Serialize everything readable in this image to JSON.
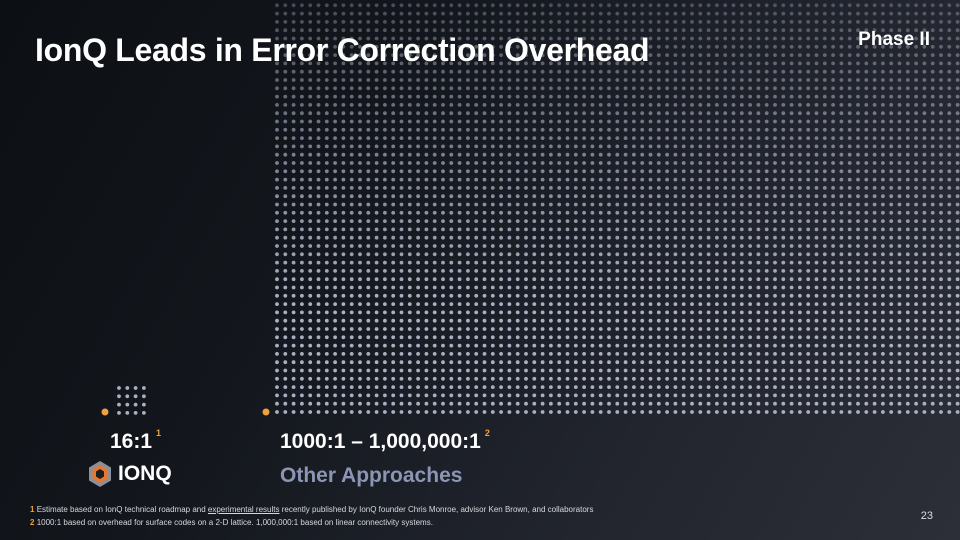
{
  "title": "IonQ Leads in Error Correction Overhead",
  "phase": "Phase II",
  "ionq": {
    "ratio": "16:1",
    "footnote_ref": "1",
    "logo_text": "IONQ"
  },
  "other": {
    "ratio": "1000:1 – 1,000,000:1",
    "footnote_ref": "2",
    "label": "Other Approaches"
  },
  "footnotes": [
    {
      "num": "1",
      "pre": "Estimate based on IonQ technical roadmap and ",
      "link": "experimental results",
      "post": " recently published by IonQ founder Chris Monroe, advisor Ken Brown, and collaborators"
    },
    {
      "num": "2",
      "text": "1000:1 based on overhead for surface codes on a 2-D lattice. 1,000,000:1 based on linear connectivity systems."
    }
  ],
  "page_number": "23",
  "colors": {
    "accent": "#f0a03c",
    "dot": "#a9b0c4",
    "secondary_text": "#8c95b4"
  }
}
